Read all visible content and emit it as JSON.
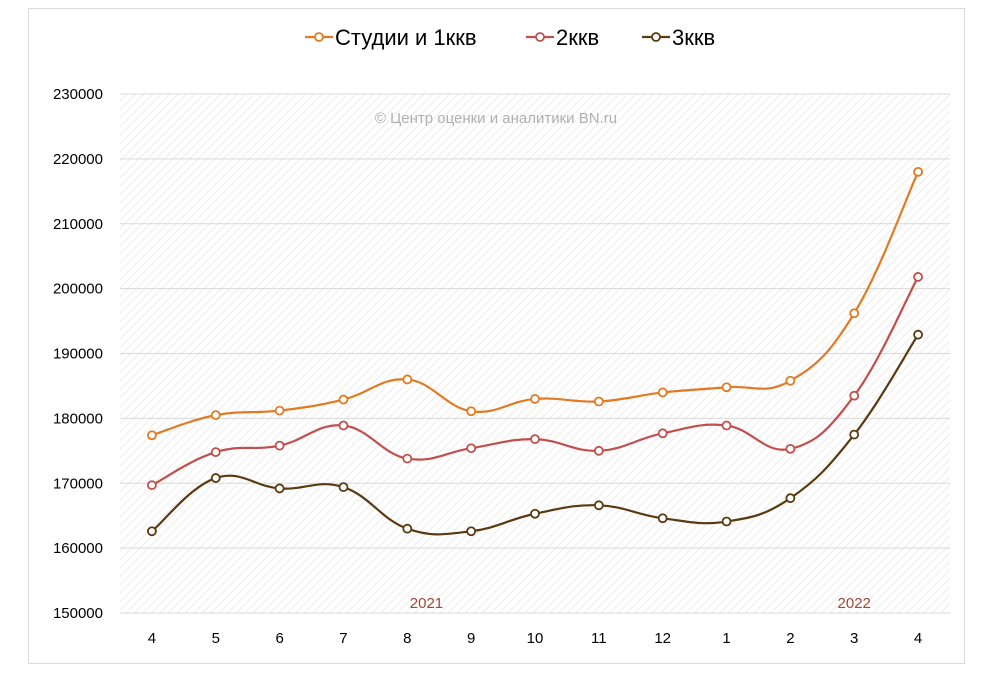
{
  "chart_data": {
    "type": "line",
    "title": "",
    "watermark": "© Центр оценки и аналитики BN.ru",
    "categories": [
      "4",
      "5",
      "6",
      "7",
      "8",
      "9",
      "10",
      "11",
      "12",
      "1",
      "2",
      "3",
      "4"
    ],
    "year_labels": [
      {
        "text": "2021",
        "at_index": 4.3
      },
      {
        "text": "2022",
        "at_index": 11.0
      }
    ],
    "ylim": [
      150000,
      230000
    ],
    "yticks": [
      150000,
      160000,
      170000,
      180000,
      190000,
      200000,
      210000,
      220000,
      230000
    ],
    "legend_position": "top",
    "series": [
      {
        "name": "Студии и 1ккв",
        "color": "#e07b24",
        "values": [
          177400,
          180500,
          181200,
          182900,
          186000,
          181100,
          183000,
          182600,
          184000,
          184800,
          185800,
          196200,
          218000
        ]
      },
      {
        "name": "2ккв",
        "color": "#c0504d",
        "values": [
          169700,
          174800,
          175800,
          178900,
          173800,
          175400,
          176800,
          175000,
          177700,
          178900,
          175300,
          183500,
          201800
        ]
      },
      {
        "name": "3ккв",
        "color": "#5a3a10",
        "values": [
          162600,
          170800,
          169200,
          169400,
          163000,
          162600,
          165300,
          166600,
          164600,
          164100,
          167700,
          177500,
          192900
        ]
      }
    ]
  }
}
